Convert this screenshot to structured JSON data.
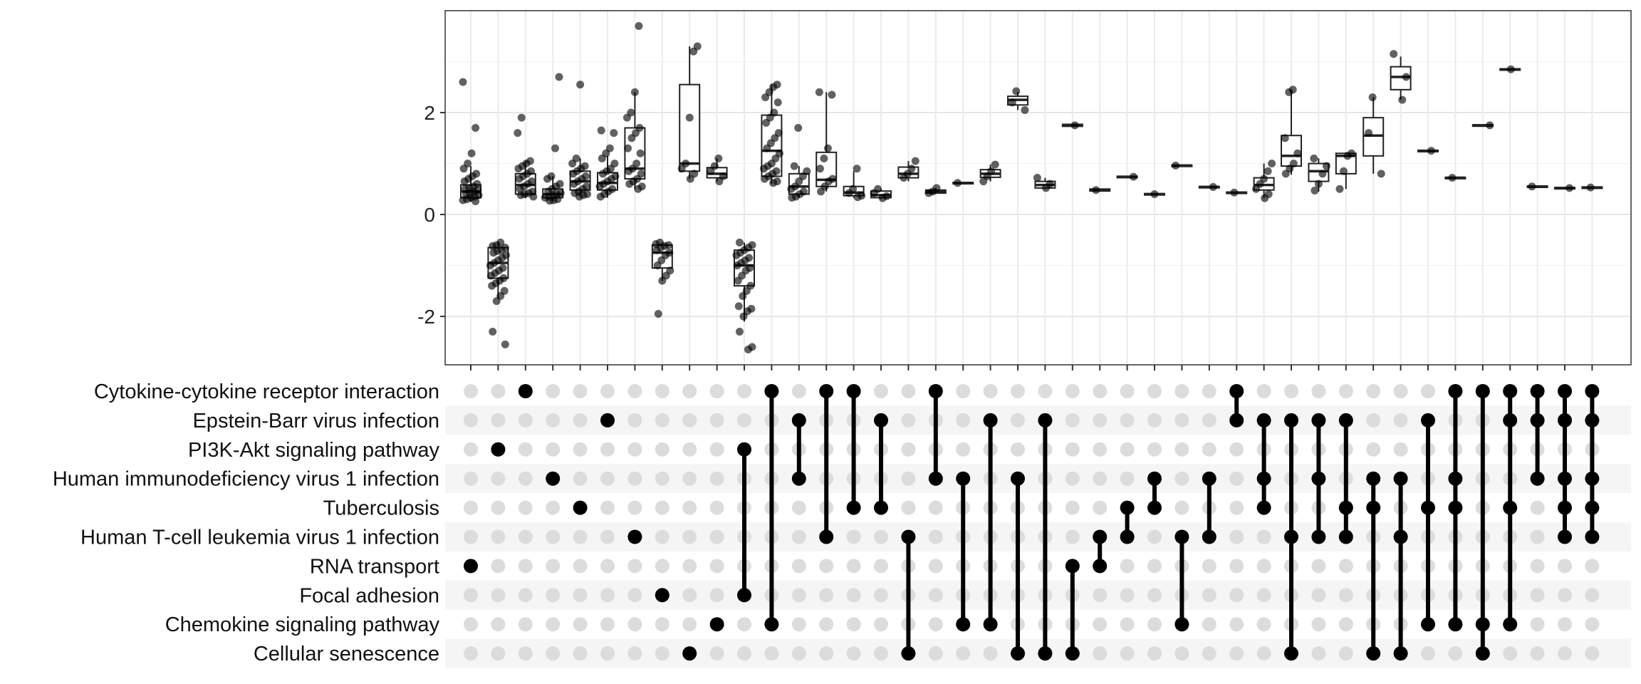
{
  "chart_data": {
    "type": "upset-boxplot",
    "y_ticks": [
      -2,
      0,
      2
    ],
    "ylim": [
      -2.95,
      4.0
    ],
    "grid": true,
    "sets": [
      "Cytokine-cytokine receptor interaction",
      "Epstein-Barr virus infection",
      "PI3K-Akt signaling pathway",
      "Human immunodeficiency virus 1 infection",
      "Tuberculosis",
      "Human T-cell leukemia virus 1 infection",
      "RNA transport",
      "Focal adhesion",
      "Chemokine signaling pathway",
      "Cellular senescence"
    ],
    "intersections": [
      {
        "sets": [
          6
        ],
        "box": {
          "q1": 0.33,
          "median": 0.45,
          "q3": 0.58,
          "wlo": 0.25,
          "whi": 0.95
        },
        "points": [
          2.6,
          1.7,
          1.2,
          1.0,
          0.9,
          0.8,
          0.75,
          0.7,
          0.65,
          0.6,
          0.55,
          0.52,
          0.5,
          0.48,
          0.45,
          0.42,
          0.4,
          0.38,
          0.35,
          0.33,
          0.3,
          0.28,
          0.26
        ]
      },
      {
        "sets": [
          2
        ],
        "box": {
          "q1": -1.25,
          "median": -0.95,
          "q3": -0.65,
          "wlo": -1.65,
          "whi": -0.55
        },
        "points": [
          -0.55,
          -0.6,
          -0.62,
          -0.65,
          -0.7,
          -0.72,
          -0.75,
          -0.8,
          -0.85,
          -0.9,
          -0.95,
          -1.0,
          -1.05,
          -1.1,
          -1.15,
          -1.2,
          -1.25,
          -1.3,
          -1.35,
          -1.4,
          -1.5,
          -1.6,
          -1.7,
          -2.3,
          -2.55
        ]
      },
      {
        "sets": [
          0
        ],
        "box": {
          "q1": 0.4,
          "median": 0.58,
          "q3": 0.8,
          "wlo": 0.32,
          "whi": 1.05
        },
        "points": [
          1.9,
          1.6,
          1.05,
          1.0,
          0.95,
          0.9,
          0.85,
          0.8,
          0.75,
          0.7,
          0.65,
          0.6,
          0.55,
          0.5,
          0.45,
          0.42,
          0.4,
          0.38,
          0.35
        ]
      },
      {
        "sets": [
          3
        ],
        "box": {
          "q1": 0.33,
          "median": 0.4,
          "q3": 0.5,
          "wlo": 0.26,
          "whi": 0.75
        },
        "points": [
          2.7,
          1.3,
          0.75,
          0.7,
          0.6,
          0.55,
          0.5,
          0.45,
          0.42,
          0.4,
          0.38,
          0.35,
          0.33,
          0.3,
          0.28,
          0.27
        ]
      },
      {
        "sets": [
          4
        ],
        "box": {
          "q1": 0.48,
          "median": 0.65,
          "q3": 0.85,
          "wlo": 0.35,
          "whi": 1.1
        },
        "points": [
          2.55,
          1.1,
          1.0,
          0.95,
          0.9,
          0.85,
          0.8,
          0.75,
          0.7,
          0.65,
          0.6,
          0.55,
          0.5,
          0.45,
          0.42,
          0.4,
          0.38,
          0.35
        ]
      },
      {
        "sets": [
          1
        ],
        "box": {
          "q1": 0.48,
          "median": 0.62,
          "q3": 0.82,
          "wlo": 0.33,
          "whi": 1.15
        },
        "points": [
          1.65,
          1.6,
          1.3,
          1.2,
          1.1,
          1.0,
          0.9,
          0.85,
          0.8,
          0.75,
          0.7,
          0.65,
          0.6,
          0.55,
          0.5,
          0.45,
          0.4,
          0.35
        ]
      },
      {
        "sets": [
          5
        ],
        "box": {
          "q1": 0.7,
          "median": 0.9,
          "q3": 1.7,
          "wlo": 0.5,
          "whi": 2.4
        },
        "points": [
          3.7,
          2.4,
          2.0,
          1.9,
          1.7,
          1.6,
          1.5,
          1.3,
          1.2,
          1.0,
          0.9,
          0.85,
          0.8,
          0.7,
          0.65,
          0.6,
          0.55,
          0.5
        ]
      },
      {
        "sets": [
          7
        ],
        "box": {
          "q1": -1.05,
          "median": -0.75,
          "q3": -0.6,
          "wlo": -1.3,
          "whi": -0.55
        },
        "points": [
          -0.55,
          -0.58,
          -0.6,
          -0.62,
          -0.65,
          -0.7,
          -0.75,
          -0.8,
          -0.9,
          -1.0,
          -1.1,
          -1.2,
          -1.3,
          -1.95
        ]
      },
      {
        "sets": [
          9
        ],
        "box": {
          "q1": 0.85,
          "median": 1.0,
          "q3": 2.55,
          "wlo": 0.7,
          "whi": 3.3
        },
        "points": [
          3.3,
          3.2,
          1.9,
          1.0,
          0.9,
          0.8,
          0.7
        ]
      },
      {
        "sets": [
          8
        ],
        "box": {
          "q1": 0.72,
          "median": 0.8,
          "q3": 0.92,
          "wlo": 0.65,
          "whi": 1.1
        },
        "points": [
          1.1,
          0.95,
          0.85,
          0.75,
          0.65
        ]
      },
      {
        "sets": [
          2,
          7
        ],
        "box": {
          "q1": -1.4,
          "median": -1.0,
          "q3": -0.7,
          "wlo": -2.1,
          "whi": -0.55
        },
        "points": [
          -0.55,
          -0.6,
          -0.65,
          -0.7,
          -0.75,
          -0.8,
          -0.85,
          -0.9,
          -0.95,
          -1.0,
          -1.05,
          -1.1,
          -1.2,
          -1.3,
          -1.4,
          -1.5,
          -1.6,
          -1.8,
          -1.85,
          -1.9,
          -2.0,
          -2.3,
          -2.6,
          -2.65
        ]
      },
      {
        "sets": [
          0,
          8
        ],
        "box": {
          "q1": 0.75,
          "median": 1.25,
          "q3": 1.95,
          "wlo": 0.6,
          "whi": 2.55
        },
        "points": [
          2.55,
          2.5,
          2.4,
          2.3,
          2.2,
          2.0,
          1.9,
          1.8,
          1.6,
          1.5,
          1.4,
          1.3,
          1.2,
          1.1,
          1.0,
          0.95,
          0.9,
          0.85,
          0.8,
          0.75,
          0.7,
          0.65,
          0.62
        ]
      },
      {
        "sets": [
          1,
          3
        ],
        "box": {
          "q1": 0.4,
          "median": 0.55,
          "q3": 0.8,
          "wlo": 0.33,
          "whi": 0.95
        },
        "points": [
          1.7,
          0.95,
          0.85,
          0.75,
          0.65,
          0.55,
          0.5,
          0.45,
          0.4,
          0.35,
          0.33
        ]
      },
      {
        "sets": [
          0,
          5
        ],
        "box": {
          "q1": 0.55,
          "median": 0.68,
          "q3": 1.22,
          "wlo": 0.45,
          "whi": 2.4
        },
        "points": [
          2.4,
          2.35,
          1.3,
          1.1,
          0.9,
          0.7,
          0.65,
          0.55,
          0.45
        ]
      },
      {
        "sets": [
          0,
          4
        ],
        "box": {
          "q1": 0.37,
          "median": 0.43,
          "q3": 0.55,
          "wlo": 0.33,
          "whi": 0.85
        },
        "points": [
          0.9,
          0.5,
          0.42,
          0.37,
          0.34
        ]
      },
      {
        "sets": [
          1,
          4
        ],
        "box": {
          "q1": 0.33,
          "median": 0.38,
          "q3": 0.46,
          "wlo": 0.3,
          "whi": 0.5
        },
        "points": [
          0.5,
          0.42,
          0.36,
          0.32
        ]
      },
      {
        "sets": [
          5,
          9
        ],
        "box": {
          "q1": 0.72,
          "median": 0.8,
          "q3": 0.93,
          "wlo": 0.65,
          "whi": 1.05
        },
        "points": [
          1.05,
          0.9,
          0.8,
          0.72
        ]
      },
      {
        "sets": [
          0,
          3
        ],
        "box": {
          "q1": 0.42,
          "median": 0.45,
          "q3": 0.48,
          "wlo": 0.4,
          "whi": 0.52
        },
        "points": [
          0.52,
          0.45,
          0.42
        ]
      },
      {
        "sets": [
          3,
          8
        ],
        "box": {
          "q1": 0.61,
          "median": 0.62,
          "q3": 0.63,
          "wlo": 0.6,
          "whi": 0.64
        },
        "points": [
          0.62
        ]
      },
      {
        "sets": [
          1,
          8
        ],
        "box": {
          "q1": 0.73,
          "median": 0.8,
          "q3": 0.88,
          "wlo": 0.65,
          "whi": 0.98
        },
        "points": [
          0.98,
          0.85,
          0.75,
          0.65
        ]
      },
      {
        "sets": [
          3,
          9
        ],
        "box": {
          "q1": 2.15,
          "median": 2.25,
          "q3": 2.32,
          "wlo": 2.05,
          "whi": 2.4
        },
        "points": [
          2.42,
          2.2,
          2.05
        ]
      },
      {
        "sets": [
          1,
          9
        ],
        "box": {
          "q1": 0.52,
          "median": 0.58,
          "q3": 0.65,
          "wlo": 0.5,
          "whi": 0.72
        },
        "points": [
          0.72,
          0.6,
          0.52
        ]
      },
      {
        "sets": [
          6,
          9
        ],
        "box": {
          "q1": 1.73,
          "median": 1.75,
          "q3": 1.77,
          "wlo": 1.72,
          "whi": 1.78
        },
        "points": [
          1.75
        ]
      },
      {
        "sets": [
          5,
          6
        ],
        "box": {
          "q1": 0.46,
          "median": 0.48,
          "q3": 0.5,
          "wlo": 0.45,
          "whi": 0.51
        },
        "points": [
          0.48
        ]
      },
      {
        "sets": [
          4,
          5
        ],
        "box": {
          "q1": 0.73,
          "median": 0.74,
          "q3": 0.75,
          "wlo": 0.72,
          "whi": 0.76
        },
        "points": [
          0.74
        ]
      },
      {
        "sets": [
          3,
          4
        ],
        "box": {
          "q1": 0.39,
          "median": 0.4,
          "q3": 0.41,
          "wlo": 0.38,
          "whi": 0.42
        },
        "points": [
          0.4
        ]
      },
      {
        "sets": [
          5,
          8
        ],
        "box": {
          "q1": 0.95,
          "median": 0.96,
          "q3": 0.97,
          "wlo": 0.94,
          "whi": 0.98
        },
        "points": [
          0.96
        ]
      },
      {
        "sets": [
          3,
          5
        ],
        "box": {
          "q1": 0.53,
          "median": 0.54,
          "q3": 0.55,
          "wlo": 0.52,
          "whi": 0.56
        },
        "points": [
          0.54
        ]
      },
      {
        "sets": [
          0,
          1
        ],
        "box": {
          "q1": 0.42,
          "median": 0.43,
          "q3": 0.44,
          "wlo": 0.41,
          "whi": 0.45
        },
        "points": [
          0.43
        ]
      },
      {
        "sets": [
          1,
          3,
          4
        ],
        "box": {
          "q1": 0.48,
          "median": 0.58,
          "q3": 0.72,
          "wlo": 0.32,
          "whi": 1.0
        },
        "points": [
          1.0,
          0.85,
          0.7,
          0.6,
          0.5,
          0.4,
          0.32
        ]
      },
      {
        "sets": [
          1,
          5,
          9
        ],
        "box": {
          "q1": 0.95,
          "median": 1.15,
          "q3": 1.55,
          "wlo": 0.78,
          "whi": 2.45
        },
        "points": [
          2.45,
          2.4,
          1.5,
          1.2,
          1.0,
          0.9,
          0.8
        ]
      },
      {
        "sets": [
          1,
          3,
          5
        ],
        "box": {
          "q1": 0.65,
          "median": 0.85,
          "q3": 1.0,
          "wlo": 0.45,
          "whi": 1.1
        },
        "points": [
          1.1,
          0.95,
          0.8,
          0.6,
          0.47
        ]
      },
      {
        "sets": [
          1,
          4,
          5
        ],
        "box": {
          "q1": 0.8,
          "median": 1.15,
          "q3": 1.2,
          "wlo": 0.5,
          "whi": 1.22
        },
        "points": [
          1.2,
          1.15,
          0.85,
          0.5
        ]
      },
      {
        "sets": [
          3,
          4,
          9
        ],
        "box": {
          "q1": 1.15,
          "median": 1.55,
          "q3": 1.9,
          "wlo": 0.8,
          "whi": 2.3
        },
        "points": [
          2.3,
          1.6,
          0.8
        ]
      },
      {
        "sets": [
          3,
          5,
          9
        ],
        "box": {
          "q1": 2.45,
          "median": 2.7,
          "q3": 2.9,
          "wlo": 2.25,
          "whi": 3.1
        },
        "points": [
          3.15,
          2.7,
          2.25
        ]
      },
      {
        "sets": [
          1,
          4,
          8
        ],
        "box": {
          "q1": 1.24,
          "median": 1.25,
          "q3": 1.26,
          "wlo": 1.23,
          "whi": 1.27
        },
        "points": [
          1.25
        ]
      },
      {
        "sets": [
          0,
          3,
          4,
          8
        ],
        "box": {
          "q1": 0.71,
          "median": 0.72,
          "q3": 0.73,
          "wlo": 0.7,
          "whi": 0.74
        },
        "points": [
          0.72
        ]
      },
      {
        "sets": [
          0,
          8,
          9
        ],
        "box": {
          "q1": 1.74,
          "median": 1.75,
          "q3": 1.76,
          "wlo": 1.73,
          "whi": 1.77
        },
        "points": [
          1.75
        ]
      },
      {
        "sets": [
          0,
          1,
          4,
          8
        ],
        "box": {
          "q1": 2.84,
          "median": 2.85,
          "q3": 2.86,
          "wlo": 2.83,
          "whi": 2.87
        },
        "points": [
          2.85
        ]
      },
      {
        "sets": [
          0,
          1,
          3
        ],
        "box": {
          "q1": 0.54,
          "median": 0.55,
          "q3": 0.56,
          "wlo": 0.53,
          "whi": 0.57
        },
        "points": [
          0.55
        ]
      },
      {
        "sets": [
          0,
          1,
          3,
          4,
          5
        ],
        "box": {
          "q1": 0.51,
          "median": 0.52,
          "q3": 0.53,
          "wlo": 0.5,
          "whi": 0.54
        },
        "points": [
          0.52
        ]
      },
      {
        "sets": [
          0,
          1,
          3,
          4,
          5
        ],
        "box": {
          "q1": 0.52,
          "median": 0.53,
          "q3": 0.54,
          "wlo": 0.51,
          "whi": 0.55
        },
        "points": [
          0.53
        ]
      }
    ]
  }
}
